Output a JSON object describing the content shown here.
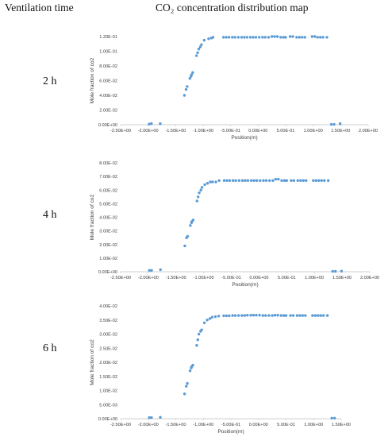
{
  "header": {
    "ventilation_time": "Ventilation time",
    "map_title": "CO₂ concentration distribution map"
  },
  "rows": [
    {
      "label": "2 h"
    },
    {
      "label": "4 h"
    },
    {
      "label": "6 h"
    }
  ],
  "colors": {
    "marker": "#5b9bd5",
    "axis": "#bfbfbf"
  },
  "chart_data": [
    {
      "type": "scatter",
      "xlabel": "Position(m)",
      "ylabel": "Mole fraction of co2",
      "xlim": [
        -2.5,
        2.0
      ],
      "ylim": [
        0,
        0.12
      ],
      "xticks": [
        "-2.50E+00",
        "-2.00E+00",
        "-1.50E+00",
        "-1.00E+00",
        "-5.00E-01",
        "0.00E+00",
        "5.00E-01",
        "1.00E+00",
        "1.50E+00",
        "2.00E+00"
      ],
      "yticks": [
        "0.00E+00",
        "2.00E-02",
        "4.00E-02",
        "6.00E-02",
        "8.00E-02",
        "1.00E-01",
        "1.20E-01"
      ],
      "series": [
        {
          "x": [
            -1.98,
            -1.94,
            -1.78,
            -1.34,
            -1.31,
            -1.29,
            -1.24,
            -1.22,
            -1.21,
            -1.19,
            -1.12,
            -1.1,
            -1.08,
            -1.05,
            -1.03,
            -0.98,
            -0.9,
            -0.85,
            -0.82,
            -0.63,
            -0.58,
            -0.53,
            -0.47,
            -0.42,
            -0.36,
            -0.3,
            -0.25,
            -0.2,
            -0.14,
            -0.09,
            -0.04,
            0.02,
            0.08,
            0.13,
            0.19,
            0.25,
            0.3,
            0.35,
            0.41,
            0.46,
            0.5,
            0.58,
            0.63,
            0.7,
            0.75,
            0.8,
            0.85,
            0.98,
            1.03,
            1.08,
            1.13,
            1.18,
            1.25,
            1.33,
            1.38,
            1.49
          ],
          "y": [
            0.001,
            0.0015,
            0.0015,
            0.04,
            0.048,
            0.052,
            0.063,
            0.066,
            0.068,
            0.071,
            0.094,
            0.098,
            0.103,
            0.106,
            0.109,
            0.115,
            0.117,
            0.118,
            0.119,
            0.119,
            0.119,
            0.119,
            0.119,
            0.119,
            0.119,
            0.119,
            0.119,
            0.119,
            0.119,
            0.119,
            0.119,
            0.119,
            0.119,
            0.119,
            0.119,
            0.12,
            0.12,
            0.12,
            0.119,
            0.119,
            0.119,
            0.12,
            0.12,
            0.119,
            0.119,
            0.119,
            0.119,
            0.12,
            0.12,
            0.119,
            0.119,
            0.119,
            0.119,
            0.0005,
            0.0005,
            0.0015
          ]
        }
      ]
    },
    {
      "type": "scatter",
      "xlabel": "Position(m)",
      "ylabel": "Mole fraction of co2",
      "xlim": [
        -2.5,
        2.0
      ],
      "ylim": [
        0,
        0.08
      ],
      "xticks": [
        "-2.50E+00",
        "-2.00E+00",
        "-1.50E+00",
        "-1.00E+00",
        "-5.00E-01",
        "0.00E+00",
        "5.00E-01",
        "1.00E+00",
        "1.50E+00",
        "2.00E+00"
      ],
      "yticks": [
        "0.00E+00",
        "1.00E-02",
        "2.00E-02",
        "3.00E-02",
        "4.00E-02",
        "5.00E-02",
        "6.00E-02",
        "7.00E-02",
        "8.00E-02"
      ],
      "series": [
        {
          "x": [
            -1.98,
            -1.94,
            -1.78,
            -1.34,
            -1.31,
            -1.29,
            -1.24,
            -1.22,
            -1.21,
            -1.19,
            -1.12,
            -1.1,
            -1.08,
            -1.05,
            -1.03,
            -0.98,
            -0.93,
            -0.88,
            -0.84,
            -0.78,
            -0.72,
            -0.63,
            -0.58,
            -0.53,
            -0.47,
            -0.42,
            -0.36,
            -0.3,
            -0.25,
            -0.2,
            -0.14,
            -0.09,
            -0.04,
            0.02,
            0.08,
            0.13,
            0.19,
            0.25,
            0.3,
            0.35,
            0.41,
            0.46,
            0.5,
            0.58,
            0.63,
            0.7,
            0.75,
            0.8,
            0.85,
            0.98,
            1.03,
            1.08,
            1.13,
            1.18,
            1.25,
            1.33,
            1.38,
            1.49
          ],
          "y": [
            0.001,
            0.001,
            0.0015,
            0.019,
            0.025,
            0.026,
            0.034,
            0.036,
            0.037,
            0.038,
            0.052,
            0.055,
            0.058,
            0.06,
            0.062,
            0.064,
            0.065,
            0.066,
            0.066,
            0.066,
            0.067,
            0.067,
            0.067,
            0.067,
            0.067,
            0.067,
            0.067,
            0.067,
            0.067,
            0.067,
            0.067,
            0.067,
            0.067,
            0.067,
            0.067,
            0.067,
            0.067,
            0.067,
            0.068,
            0.068,
            0.067,
            0.067,
            0.067,
            0.067,
            0.067,
            0.067,
            0.067,
            0.067,
            0.067,
            0.067,
            0.067,
            0.067,
            0.067,
            0.067,
            0.067,
            0.0003,
            0.0003,
            0.0005
          ]
        }
      ]
    },
    {
      "type": "scatter",
      "xlabel": "Position(m)",
      "ylabel": "Mole fraction of co2",
      "xlim": [
        -2.5,
        1.5
      ],
      "ylim": [
        0,
        0.04
      ],
      "xticks": [
        "-2.50E+00",
        "-2.00E+00",
        "-1.50E+00",
        "-1.00E+00",
        "-5.00E-01",
        "0.00E+00",
        "5.00E-01",
        "1.00E+00",
        "1.50E+00"
      ],
      "yticks": [
        "0.00E+00",
        "5.00E-03",
        "1.00E-02",
        "1.50E-02",
        "2.00E-02",
        "2.50E-02",
        "3.00E-02",
        "3.50E-02",
        "4.00E-02"
      ],
      "series": [
        {
          "x": [
            -1.98,
            -1.94,
            -1.78,
            -1.34,
            -1.31,
            -1.29,
            -1.24,
            -1.22,
            -1.21,
            -1.19,
            -1.12,
            -1.1,
            -1.08,
            -1.05,
            -1.03,
            -0.98,
            -0.93,
            -0.88,
            -0.84,
            -0.78,
            -0.72,
            -0.63,
            -0.58,
            -0.53,
            -0.47,
            -0.42,
            -0.36,
            -0.3,
            -0.25,
            -0.2,
            -0.14,
            -0.09,
            -0.04,
            0.02,
            0.08,
            0.13,
            0.19,
            0.25,
            0.3,
            0.35,
            0.41,
            0.46,
            0.5,
            0.58,
            0.63,
            0.7,
            0.75,
            0.8,
            0.85,
            0.98,
            1.03,
            1.08,
            1.13,
            1.18,
            1.25,
            1.33,
            1.38
          ],
          "y": [
            0.0004,
            0.0004,
            0.0005,
            0.0088,
            0.0115,
            0.0125,
            0.017,
            0.018,
            0.0185,
            0.019,
            0.026,
            0.028,
            0.03,
            0.031,
            0.0315,
            0.034,
            0.035,
            0.0355,
            0.036,
            0.0362,
            0.0364,
            0.0365,
            0.0365,
            0.0365,
            0.0366,
            0.0366,
            0.0366,
            0.0366,
            0.0366,
            0.0367,
            0.0367,
            0.0367,
            0.0367,
            0.0367,
            0.0366,
            0.0366,
            0.0366,
            0.0366,
            0.0367,
            0.0367,
            0.0366,
            0.0366,
            0.0366,
            0.0366,
            0.0366,
            0.0366,
            0.0366,
            0.0366,
            0.0366,
            0.0366,
            0.0366,
            0.0366,
            0.0366,
            0.0366,
            0.0366,
            0.0002,
            0.0002
          ]
        }
      ]
    }
  ]
}
